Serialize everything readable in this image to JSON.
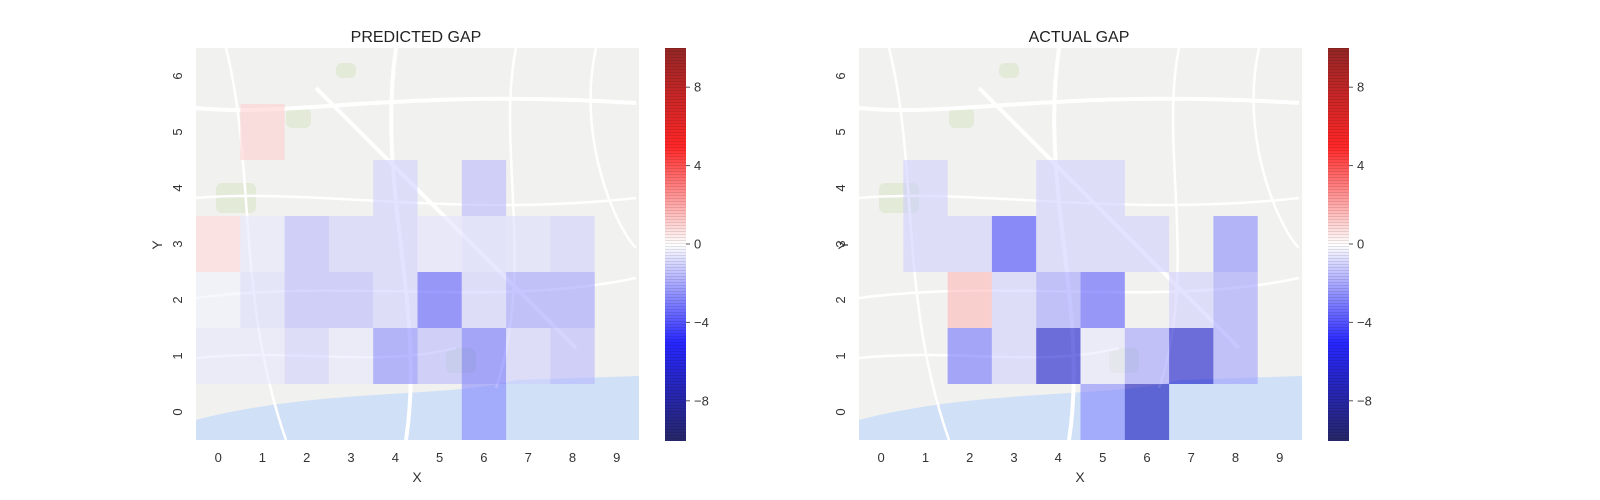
{
  "chart_data": [
    {
      "type": "heatmap",
      "title": "PREDICTED GAP",
      "xlabel": "X",
      "ylabel": "Y",
      "x_ticks": [
        "0",
        "1",
        "2",
        "3",
        "4",
        "5",
        "6",
        "7",
        "8",
        "9"
      ],
      "y_ticks": [
        "0",
        "1",
        "2",
        "3",
        "4",
        "5",
        "6"
      ],
      "grid": false,
      "background": "street map",
      "colormap": "seismic",
      "colorbar": {
        "range": [
          -10,
          10
        ],
        "ticks": [
          "8",
          "4",
          "0",
          "−4",
          "−8"
        ],
        "tick_values": [
          8,
          4,
          0,
          -4,
          -8
        ]
      },
      "cells": [
        {
          "x": 0,
          "y": 3,
          "value": 0.8
        },
        {
          "x": 1,
          "y": 3,
          "value": -0.5
        },
        {
          "x": 2,
          "y": 3,
          "value": -1.5
        },
        {
          "x": 3,
          "y": 3,
          "value": -1.0
        },
        {
          "x": 4,
          "y": 3,
          "value": -1.0
        },
        {
          "x": 5,
          "y": 3,
          "value": -0.6
        },
        {
          "x": 6,
          "y": 3,
          "value": -0.8
        },
        {
          "x": 7,
          "y": 3,
          "value": -0.7
        },
        {
          "x": 8,
          "y": 3,
          "value": -1.0
        },
        {
          "x": 1,
          "y": 5,
          "value": 1.0
        },
        {
          "x": 4,
          "y": 4,
          "value": -1.0
        },
        {
          "x": 6,
          "y": 4,
          "value": -1.5
        },
        {
          "x": 0,
          "y": 2,
          "value": -0.3
        },
        {
          "x": 1,
          "y": 2,
          "value": -0.7
        },
        {
          "x": 2,
          "y": 2,
          "value": -1.5
        },
        {
          "x": 3,
          "y": 2,
          "value": -1.5
        },
        {
          "x": 4,
          "y": 2,
          "value": -1.0
        },
        {
          "x": 5,
          "y": 2,
          "value": -3.5
        },
        {
          "x": 6,
          "y": 2,
          "value": -1.0
        },
        {
          "x": 7,
          "y": 2,
          "value": -2.0
        },
        {
          "x": 8,
          "y": 2,
          "value": -2.0
        },
        {
          "x": 0,
          "y": 1,
          "value": -0.5
        },
        {
          "x": 1,
          "y": 1,
          "value": -0.5
        },
        {
          "x": 2,
          "y": 1,
          "value": -1.0
        },
        {
          "x": 3,
          "y": 1,
          "value": -0.5
        },
        {
          "x": 4,
          "y": 1,
          "value": -2.5
        },
        {
          "x": 5,
          "y": 1,
          "value": -1.5
        },
        {
          "x": 6,
          "y": 1,
          "value": -3.0
        },
        {
          "x": 7,
          "y": 1,
          "value": -1.0
        },
        {
          "x": 8,
          "y": 1,
          "value": -1.5
        },
        {
          "x": 6,
          "y": 0,
          "value": -2.5
        }
      ]
    },
    {
      "type": "heatmap",
      "title": "ACTUAL GAP",
      "xlabel": "X",
      "ylabel": "Y",
      "x_ticks": [
        "0",
        "1",
        "2",
        "3",
        "4",
        "5",
        "6",
        "7",
        "8",
        "9"
      ],
      "y_ticks": [
        "0",
        "1",
        "2",
        "3",
        "4",
        "5",
        "6"
      ],
      "grid": false,
      "background": "street map",
      "colormap": "seismic",
      "colorbar": {
        "range": [
          -10,
          10
        ],
        "ticks": [
          "8",
          "4",
          "0",
          "−4",
          "−8"
        ],
        "tick_values": [
          8,
          4,
          0,
          -4,
          -8
        ]
      },
      "cells": [
        {
          "x": 1,
          "y": 4,
          "value": -1.0
        },
        {
          "x": 4,
          "y": 4,
          "value": -1.0
        },
        {
          "x": 5,
          "y": 4,
          "value": -1.0
        },
        {
          "x": 1,
          "y": 3,
          "value": -1.0
        },
        {
          "x": 2,
          "y": 3,
          "value": -1.0
        },
        {
          "x": 3,
          "y": 3,
          "value": -4.0
        },
        {
          "x": 4,
          "y": 3,
          "value": -1.0
        },
        {
          "x": 5,
          "y": 3,
          "value": -1.0
        },
        {
          "x": 6,
          "y": 3,
          "value": -1.0
        },
        {
          "x": 8,
          "y": 3,
          "value": -2.5
        },
        {
          "x": 2,
          "y": 2,
          "value": 1.5
        },
        {
          "x": 3,
          "y": 2,
          "value": -1.0
        },
        {
          "x": 4,
          "y": 2,
          "value": -2.0
        },
        {
          "x": 5,
          "y": 2,
          "value": -3.5
        },
        {
          "x": 7,
          "y": 2,
          "value": -1.0
        },
        {
          "x": 8,
          "y": 2,
          "value": -2.0
        },
        {
          "x": 2,
          "y": 1,
          "value": -3.0
        },
        {
          "x": 3,
          "y": 1,
          "value": -1.0
        },
        {
          "x": 4,
          "y": 1,
          "value": -6.5
        },
        {
          "x": 5,
          "y": 1,
          "value": -0.5
        },
        {
          "x": 6,
          "y": 1,
          "value": -2.0
        },
        {
          "x": 7,
          "y": 1,
          "value": -6.5
        },
        {
          "x": 8,
          "y": 1,
          "value": -2.0
        },
        {
          "x": 5,
          "y": 0,
          "value": -2.5
        },
        {
          "x": 6,
          "y": 0,
          "value": -7.0
        }
      ]
    }
  ]
}
